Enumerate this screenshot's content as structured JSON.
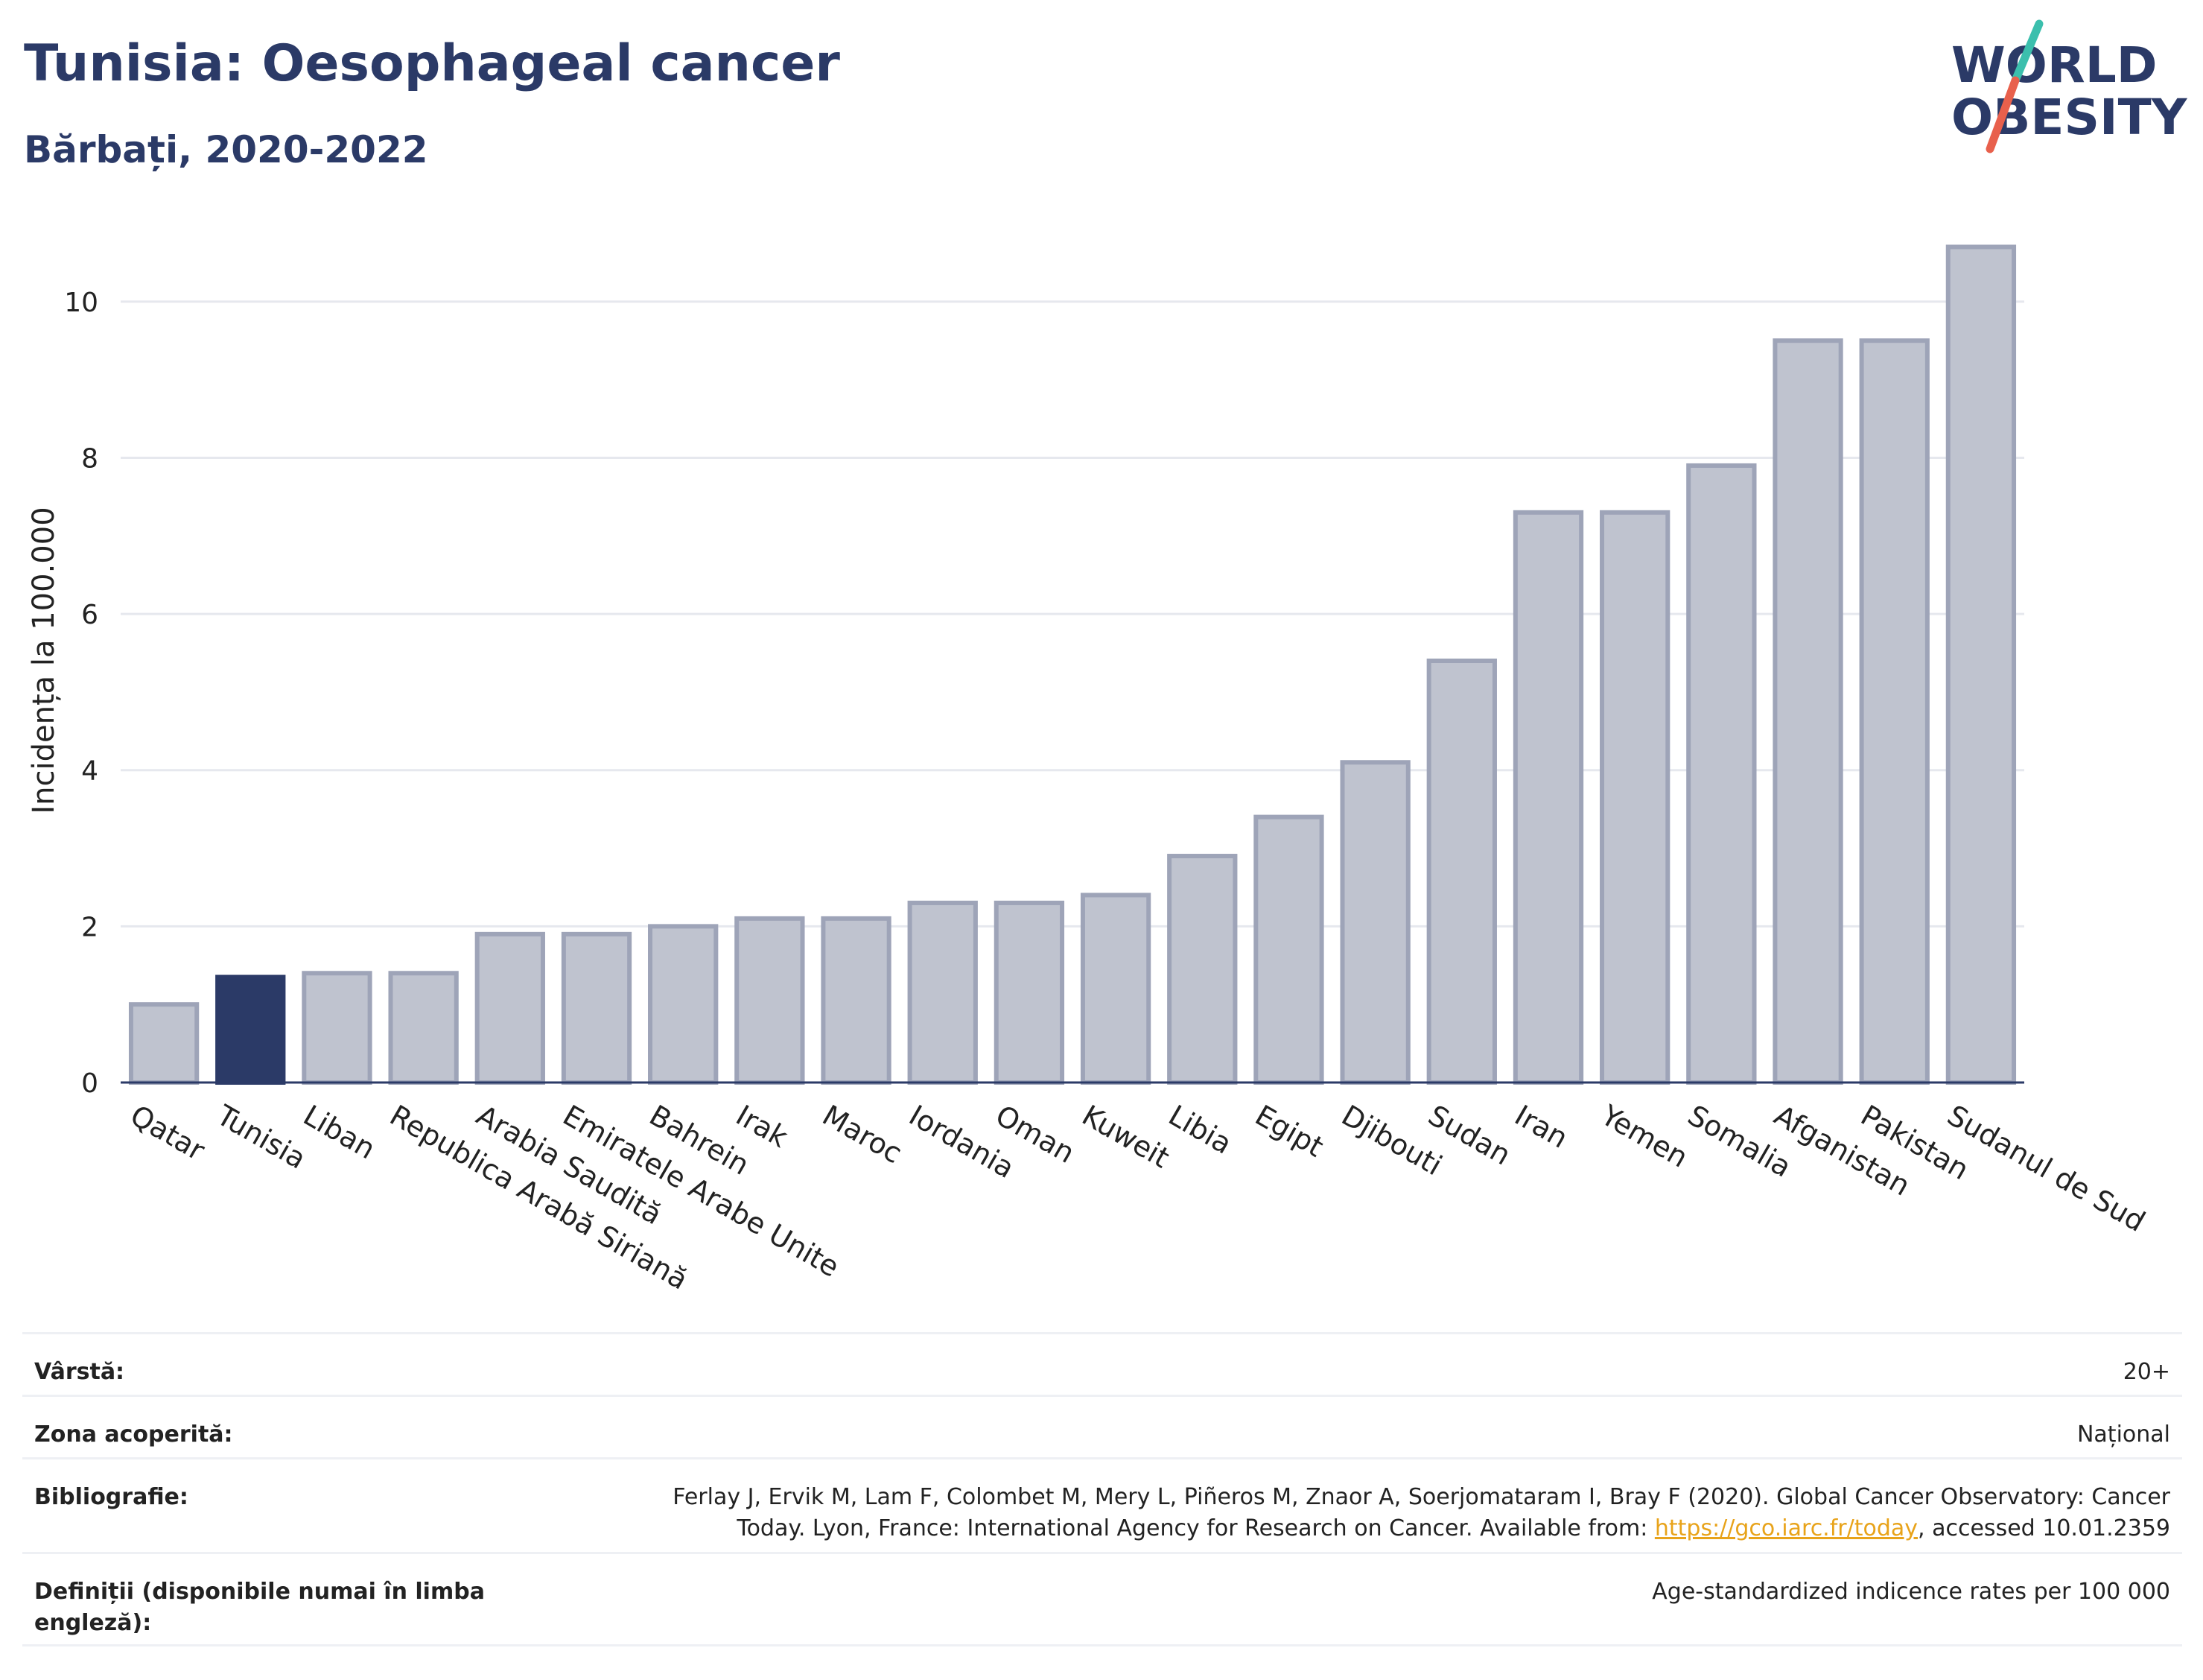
{
  "header": {
    "title": "Tunisia: Oesophageal cancer",
    "subtitle": "Bărbați, 2020-2022"
  },
  "logo": {
    "line1": "WORLD",
    "line2": "OBESITY",
    "colors": {
      "text": "#2b3a67",
      "slash_top": "#3bbfad",
      "slash_bottom": "#e8604c"
    }
  },
  "chart_data": {
    "type": "bar",
    "ylabel": "Incidența la 100.000",
    "ylim": [
      0,
      11
    ],
    "yticks": [
      0,
      2,
      4,
      6,
      8,
      10
    ],
    "grid": true,
    "highlight": "Tunisia",
    "colors": {
      "bar": "#bfc3cf",
      "bar_edge": "#9ea4b8",
      "highlight": "#2b3a67"
    },
    "categories": [
      "Qatar",
      "Tunisia",
      "Liban",
      "Republica Arabă Siriană",
      "Arabia Saudită",
      "Emiratele Arabe Unite",
      "Bahrein",
      "Irak",
      "Maroc",
      "Iordania",
      "Oman",
      "Kuweit",
      "Libia",
      "Egipt",
      "Djibouti",
      "Sudan",
      "Iran",
      "Yemen",
      "Somalia",
      "Afganistan",
      "Pakistan",
      "Sudanul de Sud"
    ],
    "values": [
      1.0,
      1.35,
      1.4,
      1.4,
      1.9,
      1.9,
      2.0,
      2.1,
      2.1,
      2.3,
      2.3,
      2.4,
      2.9,
      3.4,
      4.1,
      5.4,
      7.3,
      7.3,
      7.9,
      9.5,
      9.5,
      10.7
    ]
  },
  "metadata": {
    "rows": [
      {
        "label": "Vârstă:",
        "value": "20+"
      },
      {
        "label": "Zona acoperită:",
        "value": "Național"
      },
      {
        "label": "Bibliografie:",
        "value_line1": "Ferlay J, Ervik M, Lam F, Colombet M, Mery L, Piñeros M, Znaor A, Soerjomataram I, Bray F (2020). Global Cancer Observatory: Cancer",
        "value_pre": "Today. Lyon, France: International Agency for Research on Cancer. Available from: ",
        "link": "https://gco.iarc.fr/today",
        "value_post": ", accessed 10.01.2359"
      },
      {
        "label": "Definiții (disponibile numai în limba engleză):",
        "value": "Age-standardized indicence rates per 100 000"
      }
    ]
  }
}
